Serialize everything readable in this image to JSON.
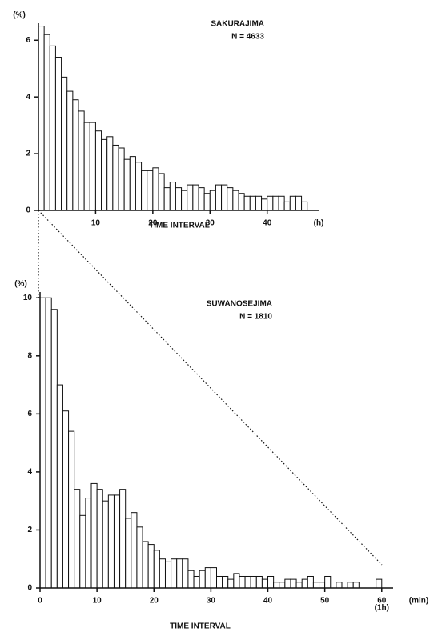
{
  "chart_data": [
    {
      "type": "histogram",
      "annotations": [
        "SAKURAJIMA",
        "N = 4633"
      ],
      "xlabel": "TIME INTERVAL",
      "xunit": "(h)",
      "ylabel": "(%)",
      "bins": [
        0,
        1,
        2,
        3,
        4,
        5,
        6,
        7,
        8,
        9,
        10,
        11,
        12,
        13,
        14,
        15,
        16,
        17,
        18,
        19,
        20,
        21,
        22,
        23,
        24,
        25,
        26,
        27,
        28,
        29,
        30,
        31,
        32,
        33,
        34,
        35,
        36,
        37,
        38,
        39,
        40,
        41,
        42,
        43,
        44,
        45,
        46,
        47
      ],
      "values": [
        6.5,
        6.2,
        5.8,
        5.4,
        4.7,
        4.2,
        3.9,
        3.5,
        3.1,
        3.1,
        2.8,
        2.5,
        2.6,
        2.3,
        2.2,
        1.8,
        1.9,
        1.7,
        1.4,
        1.4,
        1.5,
        1.3,
        0.8,
        1.0,
        0.8,
        0.7,
        0.9,
        0.9,
        0.8,
        0.6,
        0.7,
        0.9,
        0.9,
        0.8,
        0.7,
        0.6,
        0.5,
        0.5,
        0.5,
        0.4,
        0.5,
        0.5,
        0.5,
        0.3,
        0.5,
        0.5,
        0.3
      ],
      "xlim": [
        0,
        49
      ],
      "ylim": [
        0,
        6.6
      ],
      "xticks": [
        10,
        20,
        30,
        40
      ],
      "yticks": [
        0,
        2,
        4,
        6
      ]
    },
    {
      "type": "histogram",
      "annotations": [
        "SUWANOSEJIMA",
        "N = 1810"
      ],
      "xlabel": "TIME INTERVAL",
      "xunit": "(min)",
      "xnote": "(1h)",
      "ylabel": "(%)",
      "bins": [
        0,
        1,
        2,
        3,
        4,
        5,
        6,
        7,
        8,
        9,
        10,
        11,
        12,
        13,
        14,
        15,
        16,
        17,
        18,
        19,
        20,
        21,
        22,
        23,
        24,
        25,
        26,
        27,
        28,
        29,
        30,
        31,
        32,
        33,
        34,
        35,
        36,
        37,
        38,
        39,
        40,
        41,
        42,
        43,
        44,
        45,
        46,
        47,
        48,
        49,
        50,
        51,
        52,
        53,
        54,
        55,
        56,
        57,
        58,
        59,
        60
      ],
      "values": [
        10.0,
        10.0,
        9.6,
        7.0,
        6.1,
        5.4,
        3.4,
        2.5,
        3.1,
        3.6,
        3.4,
        3.0,
        3.2,
        3.2,
        3.4,
        2.4,
        2.6,
        2.1,
        1.6,
        1.5,
        1.3,
        1.0,
        0.9,
        1.0,
        1.0,
        1.0,
        0.6,
        0.4,
        0.6,
        0.7,
        0.7,
        0.4,
        0.4,
        0.3,
        0.5,
        0.4,
        0.4,
        0.4,
        0.4,
        0.3,
        0.4,
        0.2,
        0.2,
        0.3,
        0.3,
        0.2,
        0.3,
        0.4,
        0.2,
        0.2,
        0.4,
        0,
        0.2,
        0,
        0.2,
        0.2,
        0,
        0,
        0,
        0.3
      ],
      "xlim": [
        0,
        62
      ],
      "ylim": [
        0,
        10.2
      ],
      "xticks": [
        0,
        10,
        20,
        30,
        40,
        50,
        60
      ],
      "yticks": [
        0,
        2,
        4,
        6,
        8,
        10
      ]
    }
  ]
}
